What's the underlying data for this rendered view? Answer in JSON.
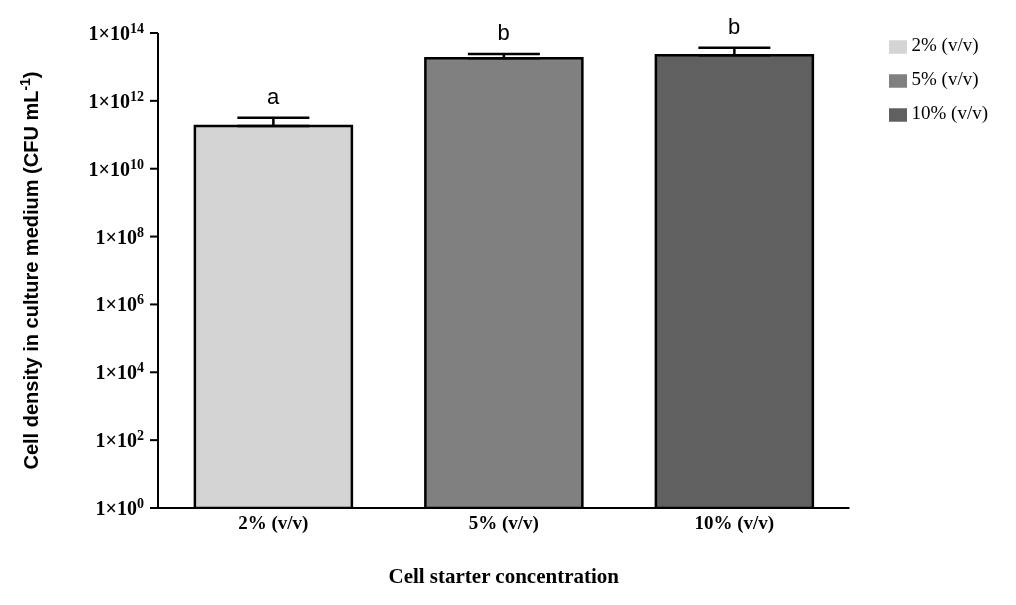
{
  "chart_data": {
    "type": "bar",
    "xlabel": "Cell starter concentration",
    "ylabel": "Cell density in culture medium (CFU mL$^{-1}$)",
    "categories": [
      "2% (v/v)",
      "5% (v/v)",
      "10% (v/v)"
    ],
    "stacked": true,
    "series": [
      {
        "name": "2% (v/v)",
        "color": "#d4d4d4",
        "values": [
          180000000000.0,
          null,
          null
        ],
        "errors": [
          [
            180000000000.0,
            320000000000.0
          ],
          null,
          null
        ]
      },
      {
        "name": "5% (v/v)",
        "color": "#808080",
        "values": [
          null,
          18000000000000.0,
          null
        ],
        "errors": [
          null,
          [
            18000000000000.0,
            24000000000000.0
          ],
          null
        ]
      },
      {
        "name": "10% (v/v)",
        "color": "#606060",
        "values": [
          null,
          null,
          22000000000000.0
        ],
        "errors": [
          null,
          null,
          [
            22000000000000.0,
            37000000000000.0
          ]
        ]
      }
    ],
    "log": "y",
    "ylim": [
      1,
      100000000000000.0
    ],
    "yticks": [
      {
        "value": 1,
        "label": "1×10$^{0}$"
      },
      {
        "value": 100,
        "label": "1×10$^{2}$"
      },
      {
        "value": 10000,
        "label": "1×10$^{4}$"
      },
      {
        "value": 1000000,
        "label": "1×10$^{6}$"
      },
      {
        "value": 100000000,
        "label": "1×10$^{8}$"
      },
      {
        "value": 10000000000,
        "label": "1×10$^{10}$"
      },
      {
        "value": 1000000000000,
        "label": "1×10$^{12}$"
      },
      {
        "value": 100000000000000,
        "label": "1×10$^{14}$"
      }
    ],
    "annotations": [
      "a",
      "b",
      "b"
    ],
    "legend": "top right",
    "grid": false
  }
}
